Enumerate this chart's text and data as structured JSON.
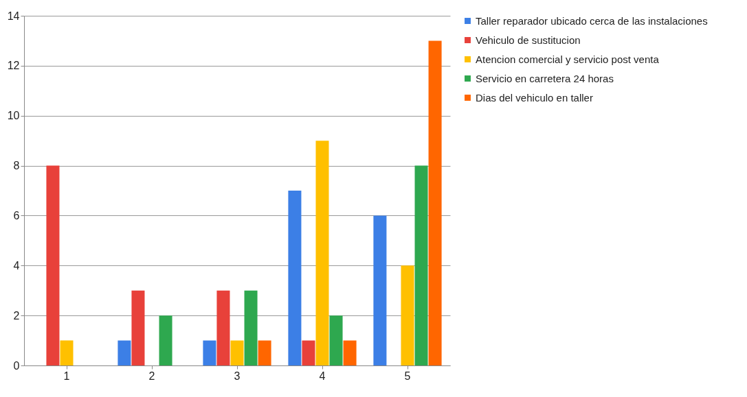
{
  "chart_data": {
    "type": "bar",
    "categories": [
      "1",
      "2",
      "3",
      "4",
      "5"
    ],
    "series": [
      {
        "name": "Taller reparador ubicado cerca de las instalaciones",
        "color": "#3c7fe6",
        "values": [
          0,
          1,
          1,
          7,
          6
        ]
      },
      {
        "name": "Vehiculo de sustitucion",
        "color": "#e8413a",
        "values": [
          8,
          3,
          3,
          1,
          0
        ]
      },
      {
        "name": "Atencion comercial y servicio post venta",
        "color": "#ffc000",
        "values": [
          1,
          0,
          1,
          9,
          4
        ]
      },
      {
        "name": "Servicio en carretera 24 horas",
        "color": "#2ea84f",
        "values": [
          0,
          2,
          3,
          2,
          8
        ]
      },
      {
        "name": "Dias del vehiculo en taller",
        "color": "#ff6600",
        "values": [
          0,
          0,
          1,
          1,
          13
        ]
      }
    ],
    "ylim": [
      0,
      14
    ],
    "yticks": [
      0,
      2,
      4,
      6,
      8,
      10,
      12,
      14
    ],
    "grid": "y",
    "legend": "right"
  }
}
